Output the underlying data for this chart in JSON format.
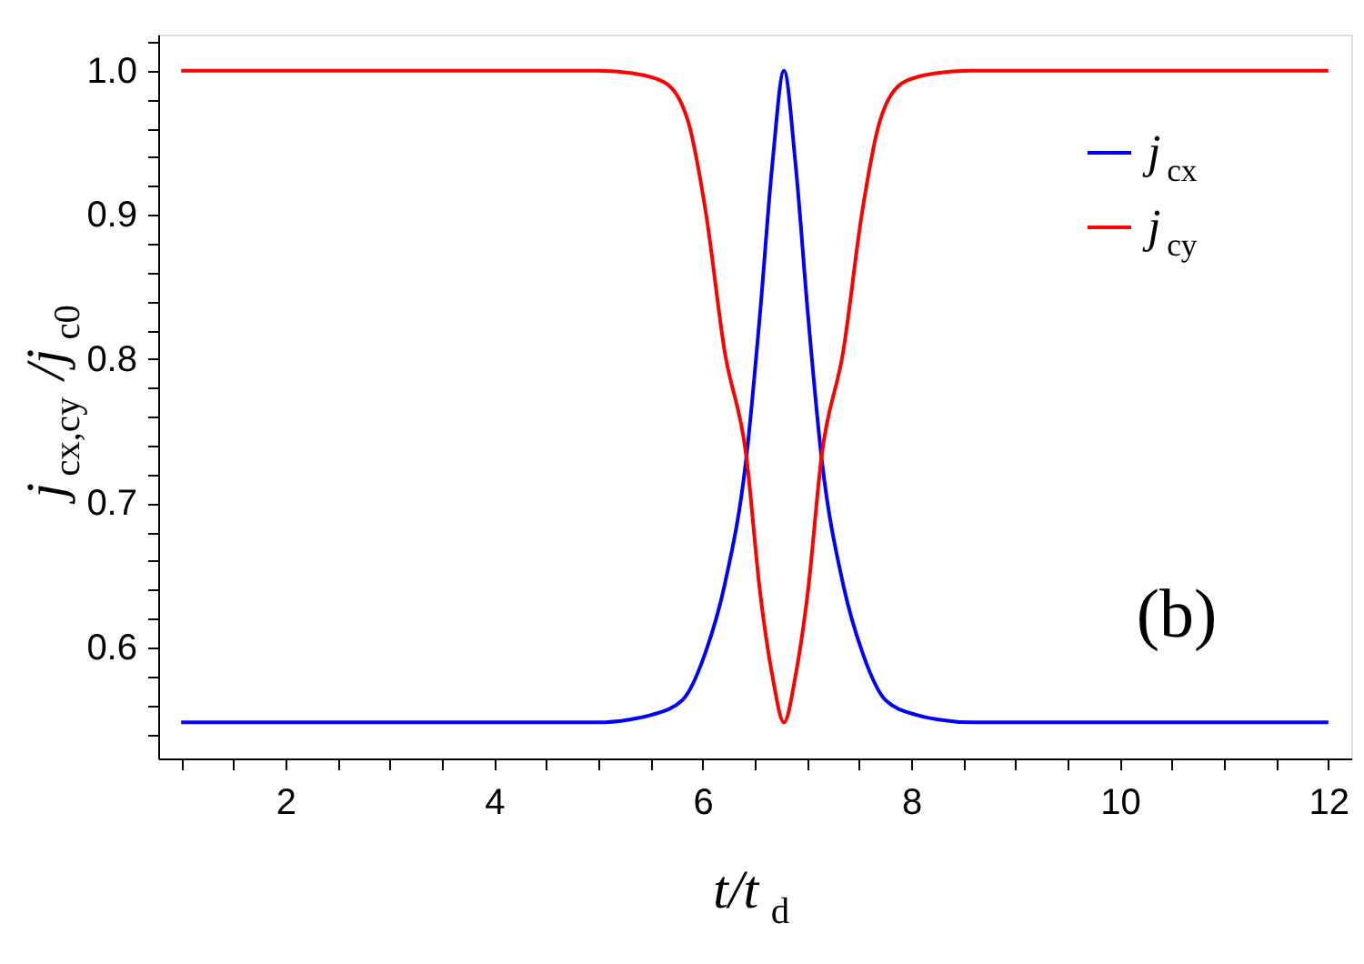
{
  "chart_data": {
    "type": "line",
    "xlabel": "t/t$_{d}$",
    "ylabel": "j$_{cx,cy}$/j$_{c0}$",
    "xlim": [
      0.78,
      12.22
    ],
    "ylim": [
      0.523,
      1.025
    ],
    "xticks": [
      {
        "value": 1,
        "label": null
      },
      {
        "value": 1.5,
        "label": null
      },
      2,
      {
        "value": 2.5,
        "label": null
      },
      {
        "value": 3,
        "label": null
      },
      {
        "value": 3.5,
        "label": null
      },
      4,
      {
        "value": 4.5,
        "label": null
      },
      {
        "value": 5,
        "label": null
      },
      {
        "value": 5.5,
        "label": null
      },
      6,
      {
        "value": 6.5,
        "label": null
      },
      {
        "value": 7,
        "label": null
      },
      {
        "value": 7.5,
        "label": null
      },
      8,
      {
        "value": 8.5,
        "label": null
      },
      {
        "value": 9,
        "label": null
      },
      {
        "value": 9.5,
        "label": null
      },
      10,
      {
        "value": 10.5,
        "label": null
      },
      {
        "value": 11,
        "label": null
      },
      {
        "value": 11.5,
        "label": null
      },
      12
    ],
    "yticks": [
      {
        "value": 0.54,
        "label": null
      },
      {
        "value": 0.56,
        "label": null
      },
      {
        "value": 0.58,
        "label": null
      },
      0.6,
      {
        "value": 0.62,
        "label": null
      },
      {
        "value": 0.64,
        "label": null
      },
      {
        "value": 0.66,
        "label": null
      },
      {
        "value": 0.68,
        "label": null
      },
      0.7,
      {
        "value": 0.72,
        "label": null
      },
      {
        "value": 0.74,
        "label": null
      },
      {
        "value": 0.76,
        "label": null
      },
      {
        "value": 0.78,
        "label": null
      },
      0.8,
      {
        "value": 0.82,
        "label": null
      },
      {
        "value": 0.84,
        "label": null
      },
      {
        "value": 0.86,
        "label": null
      },
      {
        "value": 0.88,
        "label": null
      },
      0.9,
      {
        "value": 0.92,
        "label": null
      },
      {
        "value": 0.94,
        "label": null
      },
      {
        "value": 0.96,
        "label": null
      },
      {
        "value": 0.98,
        "label": null
      },
      {
        "value": 1.0,
        "label": "1.0"
      },
      {
        "value": 1.02,
        "label": null
      }
    ],
    "grid": false,
    "legend": "top right",
    "marker": "none",
    "line_style": "solid",
    "annotations": [
      "(b)"
    ],
    "series": [
      {
        "name": "j$_{cx}$",
        "color": "#0000ff",
        "x": [
          1,
          5.0,
          5.3,
          5.5,
          5.8,
          6.03,
          6.21,
          6.42,
          6.55,
          6.67,
          6.78,
          6.89,
          7.01,
          7.14,
          7.35,
          7.53,
          7.76,
          8.06,
          8.26,
          8.6,
          12
        ],
        "values": [
          0.548,
          0.548,
          0.55,
          0.553,
          0.563,
          0.597,
          0.643,
          0.732,
          0.831,
          0.936,
          1.0,
          0.936,
          0.831,
          0.732,
          0.643,
          0.597,
          0.563,
          0.553,
          0.55,
          0.548,
          0.548
        ]
      },
      {
        "name": "j$_{cy}$",
        "color": "#ff0000",
        "x": [
          1,
          5.0,
          5.34,
          5.63,
          5.86,
          6.03,
          6.21,
          6.42,
          6.55,
          6.67,
          6.78,
          6.89,
          7.01,
          7.14,
          7.35,
          7.53,
          7.7,
          7.93,
          8.22,
          8.56,
          12
        ],
        "values": [
          1.0,
          1.0,
          0.998,
          0.992,
          0.965,
          0.902,
          0.806,
          0.732,
          0.639,
          0.58,
          0.548,
          0.58,
          0.639,
          0.732,
          0.806,
          0.902,
          0.965,
          0.992,
          0.998,
          1.0,
          1.0
        ]
      }
    ]
  }
}
